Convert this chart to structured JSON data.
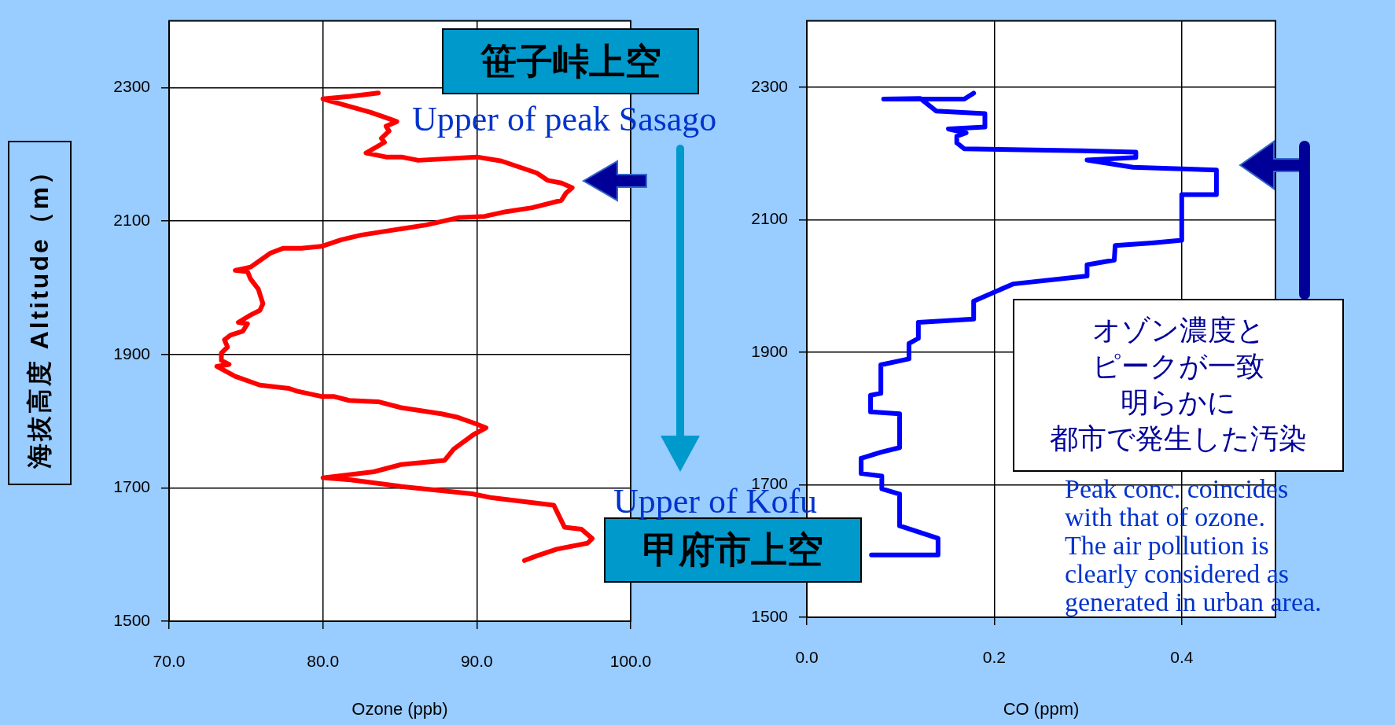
{
  "chart_data": [
    {
      "type": "line",
      "xlabel": "Ozone (ppb)",
      "ylabel": "海抜高度 Altitude（m）",
      "annotations": [
        "笹子峠上空",
        "Upper of peak Sasago",
        "甲府市上空",
        "Upper of Kofu"
      ],
      "xlim": [
        70,
        100
      ],
      "xticks": [
        {
          "value": 70,
          "label": "70.0"
        },
        {
          "value": 80,
          "label": "80.0"
        },
        {
          "value": 90,
          "label": "90.0"
        },
        {
          "value": 100,
          "label": "100.0"
        }
      ],
      "ylim": [
        1500,
        2400
      ],
      "yticks": [
        1500,
        1700,
        1900,
        2100,
        2300
      ],
      "grid": true,
      "marker": "none",
      "series": [
        {
          "color": "#ff0000",
          "x": [
            83.6,
            81.8,
            80.0,
            83.1,
            84.1,
            84.8,
            84.1,
            84.3,
            83.8,
            84.0,
            82.8,
            84.1,
            85.1,
            86.2,
            90.0,
            91.6,
            93.9,
            94.6,
            95.5,
            96.2,
            95.8,
            95.5,
            93.6,
            91.9,
            90.5,
            88.8,
            86.7,
            82.5,
            81.2,
            79.9,
            78.6,
            77.4,
            76.6,
            75.3,
            74.3,
            75.1,
            75.3,
            75.8,
            76.1,
            75.9,
            75.3,
            74.5,
            75.1,
            74.8,
            74.0,
            73.6,
            73.8,
            73.4,
            73.4,
            73.9,
            73.1,
            74.3,
            75.9,
            77.8,
            78.3,
            79.9,
            80.7,
            81.7,
            83.6,
            85.1,
            87.7,
            88.7,
            89.7,
            90.6,
            89.8,
            88.5,
            87.9,
            85.1,
            83.3,
            80.0,
            81.8,
            85.1,
            89.7,
            91.0,
            95.0,
            95.7,
            96.8,
            97.5,
            97.2,
            95.2,
            93.9,
            93.1
          ],
          "values": [
            2292,
            2287,
            2283,
            2263,
            2255,
            2249,
            2242,
            2235,
            2224,
            2218,
            2202,
            2196,
            2196,
            2191,
            2196,
            2190,
            2172,
            2161,
            2157,
            2150,
            2142,
            2131,
            2120,
            2114,
            2107,
            2105,
            2094,
            2079,
            2072,
            2062,
            2059,
            2059,
            2052,
            2031,
            2026,
            2024,
            2013,
            1998,
            1976,
            1966,
            1959,
            1948,
            1946,
            1935,
            1929,
            1922,
            1911,
            1902,
            1891,
            1885,
            1882,
            1867,
            1854,
            1849,
            1845,
            1837,
            1837,
            1831,
            1829,
            1820,
            1811,
            1806,
            1798,
            1790,
            1780,
            1758,
            1741,
            1735,
            1724,
            1715,
            1712,
            1702,
            1691,
            1685,
            1674,
            1641,
            1638,
            1624,
            1617,
            1608,
            1598,
            1591
          ]
        }
      ]
    },
    {
      "type": "line",
      "xlabel": "CO (ppm)",
      "annotations": [
        "オゾン濃度と",
        "ピークが一致",
        "明らかに",
        "都市で発生した汚染",
        "Peak conc. coincides\nwith that of ozone.\nThe air pollution is\nclearly considered as\ngenerated in urban area."
      ],
      "xlim": [
        0,
        0.5
      ],
      "xticks": [
        {
          "value": 0,
          "label": "0.0"
        },
        0.2,
        0.4
      ],
      "ylim": [
        1500,
        2400
      ],
      "yticks": [
        1500,
        1700,
        1900,
        2100,
        2300
      ],
      "grid": true,
      "marker": "none",
      "series": [
        {
          "color": "#0000ff",
          "x": [
            0.178,
            0.168,
            0.082,
            0.121,
            0.138,
            0.19,
            0.19,
            0.151,
            0.17,
            0.16,
            0.16,
            0.168,
            0.294,
            0.351,
            0.351,
            0.299,
            0.348,
            0.437,
            0.437,
            0.4,
            0.4,
            0.368,
            0.329,
            0.328,
            0.299,
            0.299,
            0.22,
            0.178,
            0.178,
            0.119,
            0.119,
            0.109,
            0.109,
            0.079,
            0.079,
            0.068,
            0.068,
            0.099,
            0.099,
            0.079,
            0.058,
            0.058,
            0.08,
            0.08,
            0.099,
            0.099,
            0.14,
            0.14,
            0.069
          ],
          "values": [
            2291,
            2282,
            2282,
            2283,
            2264,
            2260,
            2240,
            2237,
            2231,
            2226,
            2216,
            2207,
            2204,
            2202,
            2194,
            2190,
            2179,
            2175,
            2138,
            2138,
            2069,
            2065,
            2061,
            2039,
            2032,
            2015,
            2003,
            1977,
            1950,
            1945,
            1921,
            1913,
            1890,
            1881,
            1838,
            1835,
            1810,
            1807,
            1756,
            1749,
            1740,
            1717,
            1713,
            1694,
            1686,
            1638,
            1619,
            1594,
            1594
          ]
        }
      ]
    }
  ]
}
